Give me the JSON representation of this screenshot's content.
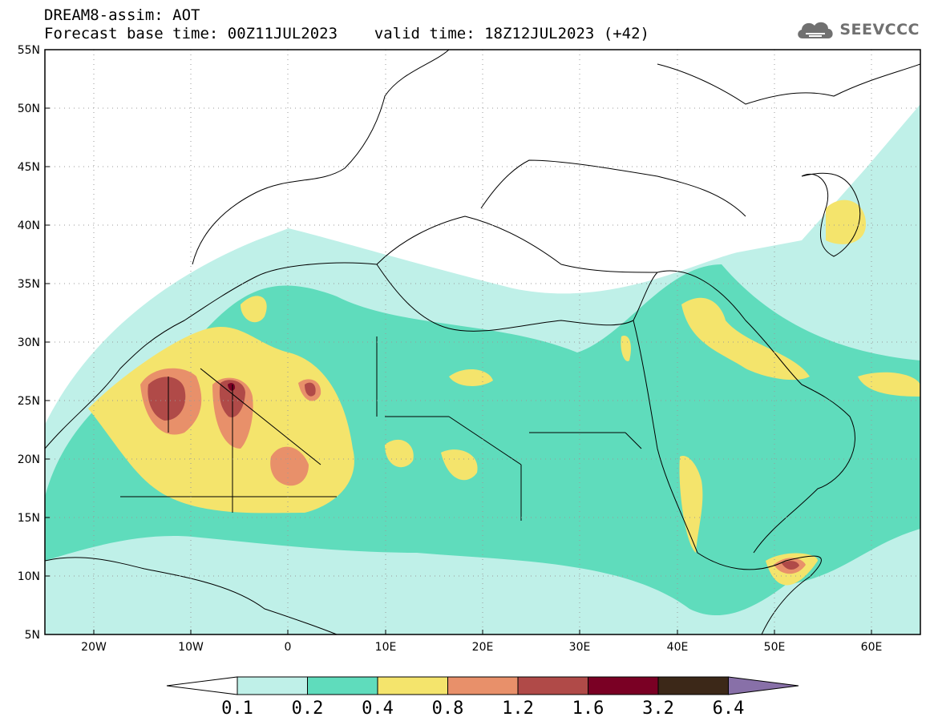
{
  "header": {
    "line1": "DREAM8-assim: AOT",
    "line2": "Forecast base time: 00Z11JUL2023    valid time: 18Z12JUL2023 (+42)"
  },
  "logo": {
    "text": "SEEVCCC",
    "icon": "cloud-icon"
  },
  "map": {
    "lon_range": [
      -25,
      65
    ],
    "lat_range": [
      5,
      55
    ],
    "lat_ticks": [
      "55N",
      "50N",
      "45N",
      "40N",
      "35N",
      "30N",
      "25N",
      "20N",
      "15N",
      "10N",
      "5N"
    ],
    "lon_ticks": [
      "20W",
      "10W",
      "0",
      "10E",
      "20E",
      "30E",
      "40E",
      "50E",
      "60E"
    ],
    "gridlines": "dotted"
  },
  "colorbar": {
    "levels": [
      "0.1",
      "0.2",
      "0.4",
      "0.8",
      "1.2",
      "1.6",
      "3.2",
      "6.4"
    ],
    "colors": [
      "#bff0e8",
      "#5fdcbc",
      "#f4e46c",
      "#e8906a",
      "#b04a48",
      "#7a0024",
      "#3c2818",
      "#8870a8"
    ],
    "extend": "both"
  }
}
